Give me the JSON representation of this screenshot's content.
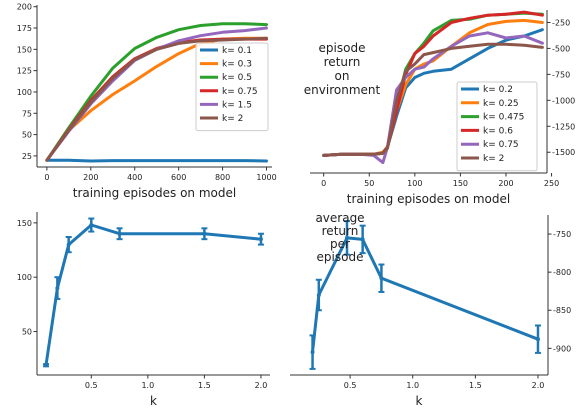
{
  "chart_data": [
    {
      "id": "tl",
      "type": "line",
      "title": "",
      "xlabel": "training episodes on model",
      "ylabel": "",
      "xlim": [
        -45,
        1025
      ],
      "ylim": [
        12,
        202
      ],
      "xticks": [
        0,
        200,
        400,
        600,
        800,
        1000
      ],
      "yticks": [
        25,
        50,
        75,
        100,
        125,
        150,
        175,
        200
      ],
      "y_axis": "left",
      "grid": false,
      "legend": "right",
      "series": [
        {
          "name": "k= 0.1",
          "color": "#1f77b4",
          "x": [
            0,
            100,
            200,
            300,
            400,
            500,
            600,
            700,
            800,
            900,
            1000
          ],
          "y": [
            20,
            20,
            19,
            19.5,
            19.5,
            19.5,
            19.5,
            19.5,
            19.5,
            19.5,
            19
          ]
        },
        {
          "name": "k= 0.3",
          "color": "#ff7f0e",
          "x": [
            0,
            100,
            200,
            300,
            400,
            500,
            600,
            700,
            800,
            900,
            1000
          ],
          "y": [
            20,
            55,
            78,
            97,
            113,
            130,
            145,
            157,
            162,
            163,
            163
          ]
        },
        {
          "name": "k= 0.5",
          "color": "#2ca02c",
          "x": [
            0,
            100,
            200,
            300,
            400,
            500,
            600,
            700,
            800,
            900,
            1000
          ],
          "y": [
            20,
            58,
            95,
            128,
            151,
            164,
            173,
            178,
            180,
            180,
            179
          ]
        },
        {
          "name": "k= 0.75",
          "color": "#d62728",
          "x": [
            0,
            100,
            200,
            300,
            400,
            500,
            600,
            700,
            800,
            900,
            1000
          ],
          "y": [
            20,
            56,
            90,
            118,
            139,
            151,
            158,
            161,
            162,
            162,
            162
          ]
        },
        {
          "name": "k= 1.5",
          "color": "#9467bd",
          "x": [
            0,
            100,
            200,
            300,
            400,
            500,
            600,
            700,
            800,
            900,
            1000
          ],
          "y": [
            20,
            54,
            86,
            113,
            137,
            150,
            160,
            166,
            170,
            172,
            175
          ]
        },
        {
          "name": "k= 2",
          "color": "#8c564b",
          "x": [
            0,
            100,
            200,
            300,
            400,
            500,
            600,
            700,
            800,
            900,
            1000
          ],
          "y": [
            20,
            55,
            88,
            116,
            138,
            150,
            157,
            160,
            161,
            162,
            163
          ]
        }
      ]
    },
    {
      "id": "tr",
      "type": "line",
      "title": "",
      "annotation": [
        "episode",
        "return",
        "on",
        "environment"
      ],
      "xlabel": "training episodes on model",
      "ylabel": "",
      "xlim": [
        -15,
        245
      ],
      "ylim": [
        -1700,
        -130
      ],
      "xticks": [
        0,
        50,
        100,
        150,
        200,
        250
      ],
      "yticks": [
        -250,
        -500,
        -750,
        -1000,
        -1250,
        -1500
      ],
      "y_axis": "right",
      "grid": false,
      "legend": "lower right",
      "series": [
        {
          "name": "k= 0.2",
          "color": "#1f77b4",
          "x": [
            0,
            20,
            40,
            55,
            65,
            70,
            80,
            90,
            100,
            110,
            120,
            140,
            160,
            180,
            200,
            220,
            240
          ],
          "y": [
            -1530,
            -1520,
            -1520,
            -1520,
            -1500,
            -1450,
            -1150,
            -880,
            -780,
            -740,
            -720,
            -700,
            -600,
            -500,
            -420,
            -380,
            -320
          ]
        },
        {
          "name": "k= 0.25",
          "color": "#ff7f0e",
          "x": [
            0,
            20,
            40,
            55,
            65,
            70,
            80,
            90,
            100,
            110,
            120,
            140,
            160,
            180,
            200,
            220,
            240
          ],
          "y": [
            -1530,
            -1520,
            -1520,
            -1520,
            -1500,
            -1450,
            -1100,
            -850,
            -700,
            -650,
            -620,
            -480,
            -350,
            -270,
            -240,
            -230,
            -250
          ]
        },
        {
          "name": "k= 0.475",
          "color": "#2ca02c",
          "x": [
            0,
            20,
            40,
            55,
            65,
            70,
            80,
            90,
            100,
            110,
            120,
            140,
            160,
            180,
            200,
            220,
            240
          ],
          "y": [
            -1530,
            -1520,
            -1520,
            -1520,
            -1510,
            -1450,
            -1050,
            -700,
            -550,
            -450,
            -330,
            -230,
            -220,
            -180,
            -170,
            -160,
            -170
          ]
        },
        {
          "name": "k= 0.6",
          "color": "#d62728",
          "x": [
            0,
            20,
            40,
            55,
            65,
            70,
            80,
            90,
            100,
            110,
            120,
            140,
            160,
            180,
            200,
            220,
            240
          ],
          "y": [
            -1530,
            -1520,
            -1520,
            -1520,
            -1510,
            -1450,
            -1100,
            -750,
            -550,
            -480,
            -380,
            -250,
            -210,
            -180,
            -170,
            -150,
            -180
          ]
        },
        {
          "name": "k= 0.75",
          "color": "#9467bd",
          "x": [
            0,
            20,
            40,
            55,
            65,
            70,
            80,
            90,
            100,
            110,
            120,
            140,
            160,
            180,
            200,
            220,
            240
          ],
          "y": [
            -1530,
            -1520,
            -1520,
            -1530,
            -1600,
            -1450,
            -900,
            -780,
            -700,
            -680,
            -600,
            -480,
            -380,
            -350,
            -400,
            -380,
            -450
          ]
        },
        {
          "name": "k= 2",
          "color": "#8c564b",
          "x": [
            0,
            20,
            40,
            55,
            65,
            70,
            80,
            90,
            100,
            110,
            120,
            140,
            160,
            180,
            200,
            220,
            240
          ],
          "y": [
            -1530,
            -1520,
            -1520,
            -1520,
            -1510,
            -1460,
            -1000,
            -720,
            -650,
            -560,
            -540,
            -500,
            -480,
            -460,
            -460,
            -470,
            -490
          ]
        }
      ]
    },
    {
      "id": "bl",
      "type": "line",
      "title": "",
      "xlabel": "k",
      "ylabel": "",
      "xlim": [
        0.02,
        2.08
      ],
      "ylim": [
        10,
        160
      ],
      "xticks": [
        0.5,
        1.0,
        1.5,
        2.0
      ],
      "xtick_labels": [
        "0.5",
        "1.0",
        "1.5",
        "2.0"
      ],
      "yticks": [
        50,
        100,
        150
      ],
      "y_axis": "left",
      "grid": false,
      "series": [
        {
          "name": "",
          "color": "#1f77b4",
          "x": [
            0.1,
            0.2,
            0.3,
            0.5,
            0.75,
            1.5,
            2.0
          ],
          "y": [
            19,
            90,
            130,
            148,
            140,
            140,
            135
          ],
          "err": [
            1,
            10,
            7,
            6,
            5,
            5,
            5
          ]
        }
      ]
    },
    {
      "id": "br",
      "type": "line",
      "title": "",
      "annotation": [
        "average",
        "return",
        "per",
        "episode"
      ],
      "xlabel": "k",
      "ylabel": "",
      "xlim": [
        0.02,
        2.08
      ],
      "ylim": [
        -935,
        -725
      ],
      "xticks": [
        0.5,
        1.0,
        1.5,
        2.0
      ],
      "xtick_labels": [
        "0.5",
        "1.0",
        "1.5",
        "2.0"
      ],
      "yticks": [
        -750,
        -800,
        -850,
        -900
      ],
      "y_axis": "right",
      "grid": false,
      "series": [
        {
          "name": "",
          "color": "#1f77b4",
          "x": [
            0.2,
            0.25,
            0.475,
            0.6,
            0.75,
            2.0
          ],
          "y": [
            -905,
            -830,
            -755,
            -757,
            -808,
            -888
          ],
          "err": [
            22,
            20,
            22,
            18,
            18,
            18
          ]
        }
      ]
    }
  ]
}
